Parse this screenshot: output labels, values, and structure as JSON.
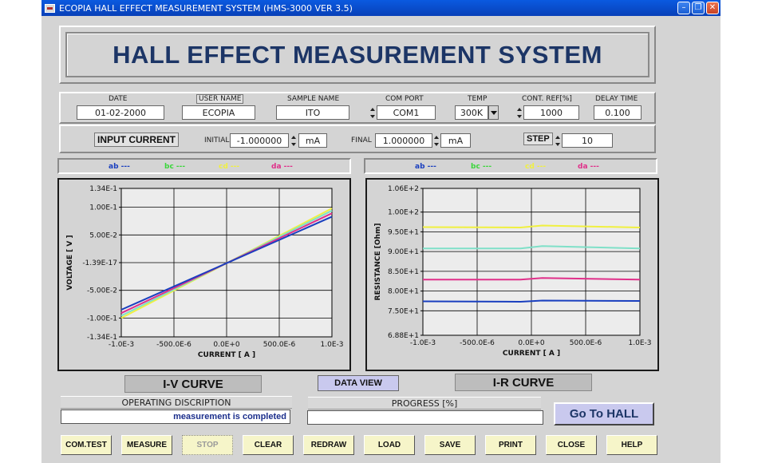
{
  "window": {
    "title": "ECOPIA HALL EFFECT MEASUREMENT SYSTEM (HMS-3000  VER 3.5)"
  },
  "banner": {
    "title": "HALL EFFECT MEASUREMENT SYSTEM"
  },
  "params": {
    "date": {
      "label": "DATE",
      "value": "01-02-2000"
    },
    "user_name": {
      "label": "USER NAME",
      "value": "ECOPIA"
    },
    "sample_name": {
      "label": "SAMPLE NAME",
      "value": "ITO"
    },
    "com_port": {
      "label": "COM PORT",
      "value": "COM1"
    },
    "temp": {
      "label": "TEMP",
      "value": "300K"
    },
    "cont_ref": {
      "label": "CONT. REF[%]",
      "value": "1000"
    },
    "delay_time": {
      "label": "DELAY TIME",
      "value": "0.100"
    }
  },
  "current": {
    "label": "INPUT CURRENT",
    "initial_label": "INITIAL",
    "initial_value": "-1.000000",
    "initial_unit": "mA",
    "final_label": "FINAL",
    "final_value": "1.000000",
    "final_unit": "mA",
    "step_label": "STEP",
    "step_value": "10"
  },
  "legend_left": [
    {
      "name": "ab ---",
      "color": "#1a3fbf"
    },
    {
      "name": "bc ---",
      "color": "#3bd63b"
    },
    {
      "name": "cd ---",
      "color": "#f0f040"
    },
    {
      "name": "da ---",
      "color": "#e0308a"
    }
  ],
  "legend_right": [
    {
      "name": "ab ---",
      "color": "#1a3fbf"
    },
    {
      "name": "bc ---",
      "color": "#3bd63b"
    },
    {
      "name": "cd ---",
      "color": "#f0f040"
    },
    {
      "name": "da ---",
      "color": "#e0308a"
    }
  ],
  "chart_data": [
    {
      "type": "line",
      "xlabel": "CURRENT [ A ]",
      "ylabel": "VOLTAGE [ V ]",
      "xlim": [
        -0.001,
        0.001
      ],
      "ylim": [
        -0.134,
        0.134
      ],
      "x_ticks": [
        "-1.0E-3",
        "-500.0E-6",
        "0.0E+0",
        "500.0E-6",
        "1.0E-3"
      ],
      "y_ticks": [
        "1.34E-1",
        "1.00E-1",
        "5.00E-2",
        "-1.39E-17",
        "-5.00E-2",
        "-1.00E-1",
        "-1.34E-1"
      ],
      "grid": true,
      "series": [
        {
          "color": "#f0f040",
          "x": [
            -0.001,
            0.001
          ],
          "y": [
            -0.1,
            0.098
          ]
        },
        {
          "color": "#7fe0c8",
          "x": [
            -0.001,
            0.001
          ],
          "y": [
            -0.096,
            0.094
          ]
        },
        {
          "color": "#e0308a",
          "x": [
            -0.001,
            0.001
          ],
          "y": [
            -0.091,
            0.089
          ]
        },
        {
          "color": "#1a3fbf",
          "x": [
            -0.001,
            0.001
          ],
          "y": [
            -0.085,
            0.083
          ]
        }
      ]
    },
    {
      "type": "line",
      "xlabel": "CURRENT [ A ]",
      "ylabel": "RESISTANCE [Ohm]",
      "xlim": [
        -0.001,
        0.001
      ],
      "ylim": [
        68.8,
        106
      ],
      "x_ticks": [
        "-1.0E-3",
        "-500.0E-6",
        "0.0E+0",
        "500.0E-6",
        "1.0E-3"
      ],
      "y_ticks": [
        "1.06E+2",
        "1.00E+2",
        "9.50E+1",
        "9.00E+1",
        "8.50E+1",
        "8.00E+1",
        "7.50E+1",
        "6.88E+1"
      ],
      "grid": true,
      "series": [
        {
          "color": "#f0f040",
          "x": [
            -0.001,
            -0.0001,
            0.0001,
            0.001
          ],
          "y": [
            96.2,
            96.1,
            96.6,
            96.1
          ]
        },
        {
          "color": "#7fe0c8",
          "x": [
            -0.001,
            -0.0001,
            0.0001,
            0.001
          ],
          "y": [
            90.8,
            90.8,
            91.4,
            90.8
          ]
        },
        {
          "color": "#e0308a",
          "x": [
            -0.001,
            -0.0001,
            0.0001,
            0.001
          ],
          "y": [
            82.9,
            82.9,
            83.3,
            82.9
          ]
        },
        {
          "color": "#1a3fbf",
          "x": [
            -0.001,
            -0.0001,
            0.0001,
            0.001
          ],
          "y": [
            77.4,
            77.3,
            77.6,
            77.5
          ]
        }
      ]
    }
  ],
  "iv_label": "I-V CURVE",
  "ir_label": "I-R CURVE",
  "data_view_label": "DATA VIEW",
  "operating": {
    "caption": "OPERATING DISCRIPTION",
    "status": "measurement is completed"
  },
  "progress": {
    "caption": "PROGRESS [%]",
    "percent": 0
  },
  "go_hall_label": "Go To HALL",
  "buttons": [
    "COM.TEST",
    "MEASURE",
    "STOP",
    "CLEAR",
    "REDRAW",
    "LOAD",
    "SAVE",
    "PRINT",
    "CLOSE",
    "HELP"
  ]
}
